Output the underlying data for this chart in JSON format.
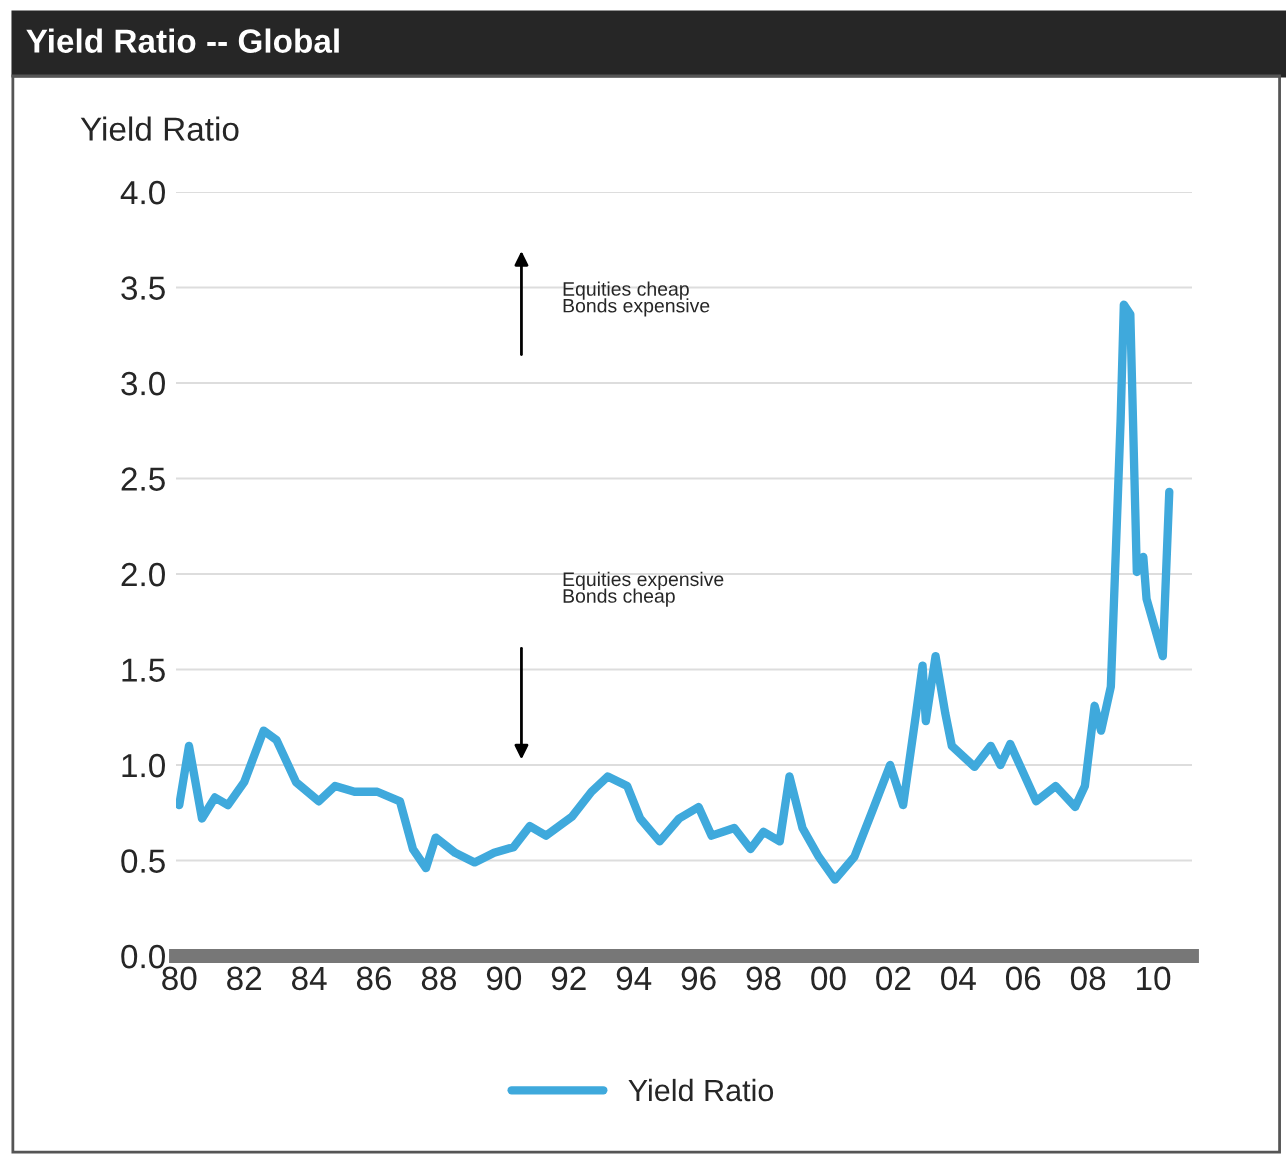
{
  "chart_data": {
    "type": "line",
    "title": "Yield Ratio -- Global",
    "ylabel": "Yield Ratio",
    "annotations": [
      "Equities cheap\nBonds expensive",
      "Equities expensive\nBonds cheap"
    ],
    "series": [
      {
        "name": "Yield Ratio",
        "color": "#3fa9dc",
        "x": [
          1980.0,
          1980.3,
          1980.7,
          1981.1,
          1981.5,
          1982.0,
          1982.6,
          1983.0,
          1983.6,
          1984.3,
          1984.8,
          1985.4,
          1986.1,
          1986.8,
          1987.2,
          1987.6,
          1987.9,
          1988.5,
          1989.1,
          1989.7,
          1990.3,
          1990.8,
          1991.3,
          1992.1,
          1992.7,
          1993.2,
          1993.8,
          1994.2,
          1994.8,
          1995.4,
          1996.0,
          1996.4,
          1997.1,
          1997.6,
          1998.0,
          1998.5,
          1998.8,
          1999.2,
          1999.7,
          2000.2,
          2000.8,
          2001.4,
          2001.9,
          2002.3,
          2002.7,
          2002.9,
          2003.0,
          2003.3,
          2003.6,
          2003.8,
          2004.5,
          2005.0,
          2005.3,
          2005.6,
          2006.4,
          2007.0,
          2007.6,
          2007.9,
          2008.2,
          2008.4,
          2008.7,
          2009.0,
          2009.1,
          2009.3,
          2009.5,
          2009.7,
          2009.8,
          2010.3,
          2010.5
        ],
        "values": [
          0.79,
          1.1,
          0.72,
          0.83,
          0.79,
          0.91,
          1.18,
          1.13,
          0.91,
          0.81,
          0.89,
          0.86,
          0.86,
          0.81,
          0.56,
          0.46,
          0.62,
          0.54,
          0.49,
          0.54,
          0.57,
          0.68,
          0.63,
          0.73,
          0.86,
          0.94,
          0.89,
          0.72,
          0.6,
          0.72,
          0.78,
          0.63,
          0.67,
          0.56,
          0.65,
          0.6,
          0.94,
          0.67,
          0.52,
          0.4,
          0.52,
          0.78,
          1.0,
          0.79,
          1.27,
          1.52,
          1.23,
          1.57,
          1.27,
          1.1,
          0.99,
          1.1,
          1.0,
          1.11,
          0.81,
          0.89,
          0.78,
          0.89,
          1.31,
          1.18,
          1.41,
          2.8,
          3.41,
          3.36,
          2.01,
          2.09,
          1.87,
          1.57,
          2.43
        ]
      }
    ],
    "xlim": [
      1979.9,
      2011.2
    ],
    "ylim": [
      0,
      4.0
    ],
    "xticks": [
      {
        "value": 1980,
        "label": "80"
      },
      {
        "value": 1982,
        "label": "82"
      },
      {
        "value": 1984,
        "label": "84"
      },
      {
        "value": 1986,
        "label": "86"
      },
      {
        "value": 1988,
        "label": "88"
      },
      {
        "value": 1990,
        "label": "90"
      },
      {
        "value": 1992,
        "label": "92"
      },
      {
        "value": 1994,
        "label": "94"
      },
      {
        "value": 1996,
        "label": "96"
      },
      {
        "value": 1998,
        "label": "98"
      },
      {
        "value": 2000,
        "label": "00"
      },
      {
        "value": 2002,
        "label": "02"
      },
      {
        "value": 2004,
        "label": "04"
      },
      {
        "value": 2006,
        "label": "06"
      },
      {
        "value": 2008,
        "label": "08"
      },
      {
        "value": 2010,
        "label": "10"
      }
    ],
    "yticks": [
      {
        "value": 0,
        "label": "0.0"
      },
      {
        "value": 0.5,
        "label": "0.5"
      },
      {
        "value": 1,
        "label": "1.0"
      },
      {
        "value": 1.5,
        "label": "1.5"
      },
      {
        "value": 2,
        "label": "2.0"
      },
      {
        "value": 2.5,
        "label": "2.5"
      },
      {
        "value": 3,
        "label": "3.0"
      },
      {
        "value": 3.5,
        "label": "3.5"
      },
      {
        "value": 4,
        "label": "4.0"
      }
    ],
    "grid": "y",
    "legend": "bottom",
    "marker": "none",
    "line_style": "solid"
  }
}
